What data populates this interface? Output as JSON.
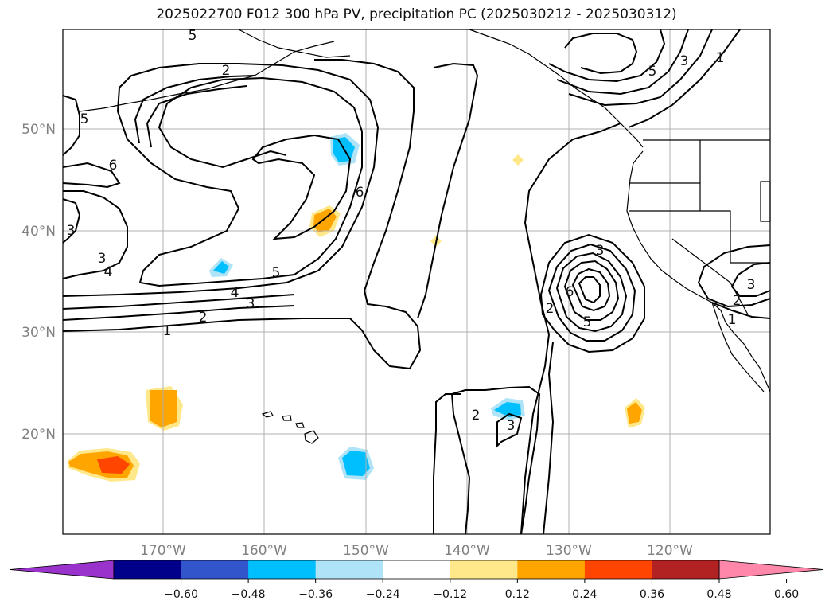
{
  "title": "2025022700 F012 300 hPa PV, precipitation PC (2025030212 - 2025030312)",
  "map": {
    "lon_range": [
      -180,
      -110
    ],
    "lat_range": [
      10,
      60
    ],
    "lat_ticks": [
      {
        "value": 50,
        "label": "50°N"
      },
      {
        "value": 40,
        "label": "40°N"
      },
      {
        "value": 30,
        "label": "30°N"
      },
      {
        "value": 20,
        "label": "20°N"
      }
    ],
    "lon_ticks": [
      {
        "value": -170,
        "label": "170°W"
      },
      {
        "value": -160,
        "label": "160°W"
      },
      {
        "value": -150,
        "label": "150°W"
      },
      {
        "value": -140,
        "label": "140°W"
      },
      {
        "value": -130,
        "label": "130°W"
      },
      {
        "value": -120,
        "label": "120°W"
      }
    ],
    "contour_labels": [
      "1",
      "2",
      "3",
      "4",
      "5",
      "6",
      "5",
      "2",
      "3",
      "4",
      "5",
      "6",
      "3",
      "2",
      "5",
      "6",
      "3",
      "2",
      "1",
      "2",
      "3",
      "3",
      "5",
      "1",
      "3"
    ]
  },
  "colorbar": {
    "colors": [
      "#9933cc",
      "#00008b",
      "#3355cc",
      "#00bfff",
      "#aee3f8",
      "#ffffff",
      "#ffe88a",
      "#ffa500",
      "#ff4500",
      "#b22222",
      "#ff88aa"
    ],
    "ticks": [
      "−0.60",
      "−0.48",
      "−0.36",
      "−0.24",
      "−0.12",
      "0.12",
      "0.24",
      "0.36",
      "0.48",
      "0.60"
    ]
  }
}
